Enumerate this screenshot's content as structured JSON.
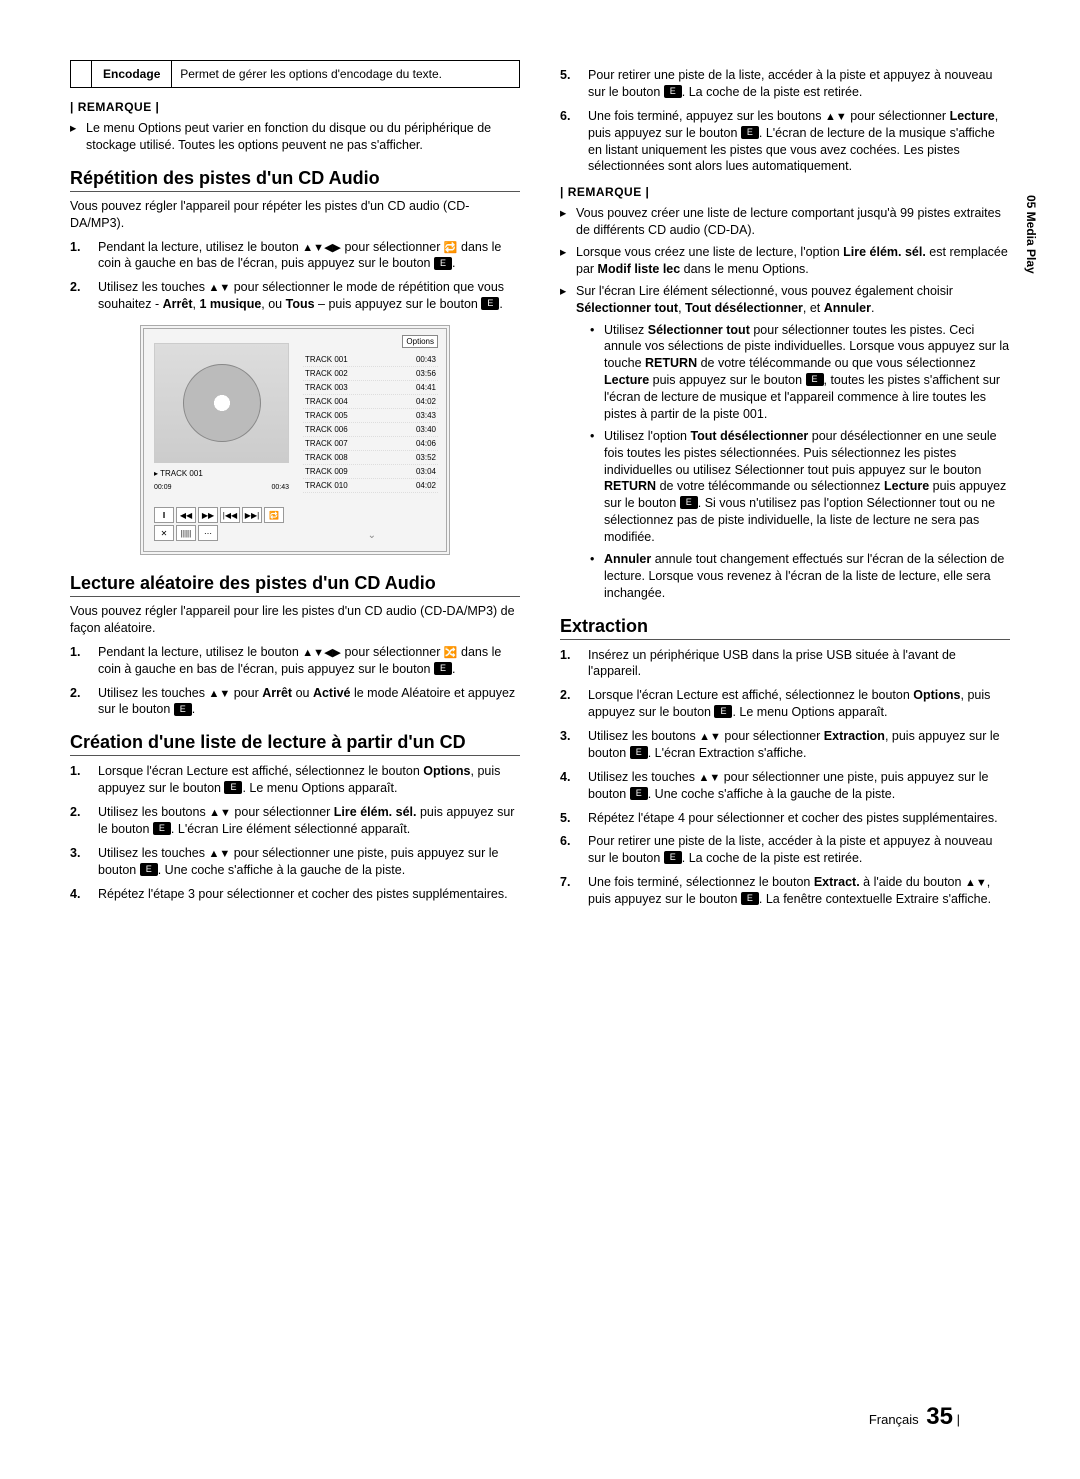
{
  "sideLabel": "05  Media Play",
  "optTable": {
    "label": "Encodage",
    "desc": "Permet de gérer les options d'encodage du texte."
  },
  "remarqueLabel": "| REMARQUE |",
  "col1": {
    "note1": [
      "Le menu Options peut varier en fonction du disque ou du périphérique de stockage utilisé. Toutes les options peuvent ne pas s'afficher."
    ],
    "h_repeat": "Répétition des pistes d'un CD Audio",
    "p_repeat": "Vous pouvez régler l'appareil pour répéter les pistes d'un CD audio (CD-DA/MP3).",
    "ol_repeat": [
      "Pendant la lecture, utilisez le bouton <span class='tri'>▲▼◀▶</span> pour sélectionner <span class='tri'>🔁</span> dans le coin à gauche en bas de l'écran, puis appuyez sur le bouton <span class='enter-icon' data-name='enter-icon'></span>.",
      "Utilisez les touches <span class='tri'>▲▼</span> pour sélectionner le mode de répétition que vous souhaitez - <b>Arrêt</b>, <b>1 musique</b>, ou <b>Tous</b> – puis appuyez sur le bouton <span class='enter-icon' data-name='enter-icon'></span>."
    ],
    "figure": {
      "optionsLabel": "Options",
      "tracks": [
        [
          "TRACK 001",
          "00:43"
        ],
        [
          "TRACK 002",
          "03:56"
        ],
        [
          "TRACK 003",
          "04:41"
        ],
        [
          "TRACK 004",
          "04:02"
        ],
        [
          "TRACK 005",
          "03:43"
        ],
        [
          "TRACK 006",
          "03:40"
        ],
        [
          "TRACK 007",
          "04:06"
        ],
        [
          "TRACK 008",
          "03:52"
        ],
        [
          "TRACK 009",
          "03:04"
        ],
        [
          "TRACK 010",
          "04:02"
        ]
      ],
      "current": "▸ TRACK 001",
      "time": [
        "00:09",
        "00:43"
      ],
      "controls": [
        "‖",
        "◀◀",
        "▶▶",
        "|◀◀",
        "▶▶|",
        "🔁",
        "✕",
        "|||||",
        "⋯"
      ]
    },
    "h_shuffle": "Lecture aléatoire des pistes d'un CD Audio",
    "p_shuffle": "Vous pouvez régler l'appareil pour lire les pistes d'un CD audio (CD-DA/MP3) de façon aléatoire.",
    "ol_shuffle": [
      "Pendant la lecture, utilisez le bouton <span class='tri'>▲▼◀▶</span> pour sélectionner <span class='tri'>🔀</span> dans le coin à gauche en bas de l'écran, puis appuyez sur le bouton <span class='enter-icon' data-name='enter-icon'></span>.",
      "Utilisez les touches <span class='tri'>▲▼</span> pour <b>Arrêt</b> ou <b>Activé</b> le mode Aléatoire et appuyez sur le bouton <span class='enter-icon' data-name='enter-icon'></span>."
    ],
    "h_playlist": "Création d'une liste de lecture à partir d'un CD",
    "ol_playlist": [
      "Lorsque l'écran Lecture est affiché, sélectionnez le bouton <b>Options</b>, puis appuyez sur le bouton <span class='enter-icon' data-name='enter-icon'></span>. Le menu Options apparaît.",
      "Utilisez les boutons <span class='tri'>▲▼</span> pour sélectionner <b>Lire élém. sél.</b> puis appuyez sur le bouton <span class='enter-icon' data-name='enter-icon'></span>. L'écran Lire élément sélectionné apparaît.",
      "Utilisez les touches <span class='tri'>▲▼</span> pour sélectionner une piste, puis appuyez sur le bouton <span class='enter-icon' data-name='enter-icon'></span>. Une coche s'affiche à la gauche de la piste.",
      "Répétez l'étape 3 pour sélectionner et cocher des pistes supplémentaires."
    ]
  },
  "col2": {
    "ol_cont": [
      "Pour retirer une piste de la liste, accéder à la piste et appuyez à nouveau sur le bouton <span class='enter-icon' data-name='enter-icon'></span>. La coche de la piste est retirée.",
      "Une fois terminé, appuyez sur les boutons <span class='tri'>▲▼</span> pour sélectionner <b>Lecture</b>, puis appuyez sur le bouton <span class='enter-icon' data-name='enter-icon'></span>. L'écran de lecture de la musique s'affiche en listant uniquement les pistes que vous avez cochées. Les pistes sélectionnées sont alors lues automatiquement."
    ],
    "ol_cont_start": 5,
    "notes2": [
      "Vous pouvez créer une liste de lecture comportant jusqu'à 99 pistes extraites de différents CD audio (CD-DA).",
      "Lorsque vous créez une liste de lecture, l'option <b>Lire élém. sél.</b> est remplacée par <b>Modif liste lec</b> dans le menu Options.",
      "Sur l'écran Lire élément sélectionné, vous pouvez également choisir <b>Sélectionner tout</b>, <b>Tout désélectionner</b>, et <b>Annuler</b>."
    ],
    "notes2_sub": [
      "Utilisez <b>Sélectionner tout</b> pour sélectionner toutes les pistes. Ceci annule vos sélections de piste individuelles. Lorsque vous appuyez sur la touche <b>RETURN</b> de votre télécommande ou que vous sélectionnez <b>Lecture</b> puis appuyez sur le bouton <span class='enter-icon' data-name='enter-icon'></span>, toutes les pistes s'affichent sur l'écran de lecture de musique et l'appareil commence à lire toutes les pistes à partir de la piste 001.",
      "Utilisez l'option <b>Tout désélectionner</b> pour désélectionner en une seule fois toutes les pistes sélectionnées. Puis sélectionnez les pistes individuelles ou utilisez Sélectionner tout puis appuyez sur le bouton <b>RETURN</b> de votre télécommande ou sélectionnez <b>Lecture</b> puis appuyez sur le bouton <span class='enter-icon' data-name='enter-icon'></span>. Si vous n'utilisez pas l'option Sélectionner tout ou ne sélectionnez pas de piste individuelle, la liste de lecture ne sera pas modifiée.",
      "<b>Annuler</b> annule tout changement effectués sur l'écran de la sélection de lecture. Lorsque vous revenez à l'écran de la liste de lecture, elle sera inchangée."
    ],
    "h_extract": "Extraction",
    "ol_extract": [
      "Insérez un périphérique USB dans la prise USB située à l'avant de l'appareil.",
      "Lorsque l'écran Lecture est affiché, sélectionnez le bouton <b>Options</b>, puis appuyez sur le bouton <span class='enter-icon' data-name='enter-icon'></span>. Le menu Options apparaît.",
      "Utilisez les boutons <span class='tri'>▲▼</span> pour sélectionner <b>Extraction</b>, puis appuyez sur le bouton <span class='enter-icon' data-name='enter-icon'></span>. L'écran Extraction s'affiche.",
      "Utilisez les touches <span class='tri'>▲▼</span> pour sélectionner une piste, puis appuyez sur le bouton <span class='enter-icon' data-name='enter-icon'></span>. Une coche s'affiche à la gauche de la piste.",
      "Répétez l'étape 4 pour sélectionner et cocher des pistes supplémentaires.",
      "Pour retirer une piste de la liste, accéder à la piste et appuyez à nouveau sur le bouton <span class='enter-icon' data-name='enter-icon'></span>. La coche de la piste est retirée.",
      "Une fois terminé, sélectionnez le bouton <b>Extract.</b> à l'aide du bouton <span class='tri'>▲▼</span>, puis appuyez sur le bouton <span class='enter-icon' data-name='enter-icon'></span>. La fenêtre contextuelle Extraire s'affiche."
    ]
  },
  "footer": {
    "lang": "Français",
    "page": "35"
  }
}
